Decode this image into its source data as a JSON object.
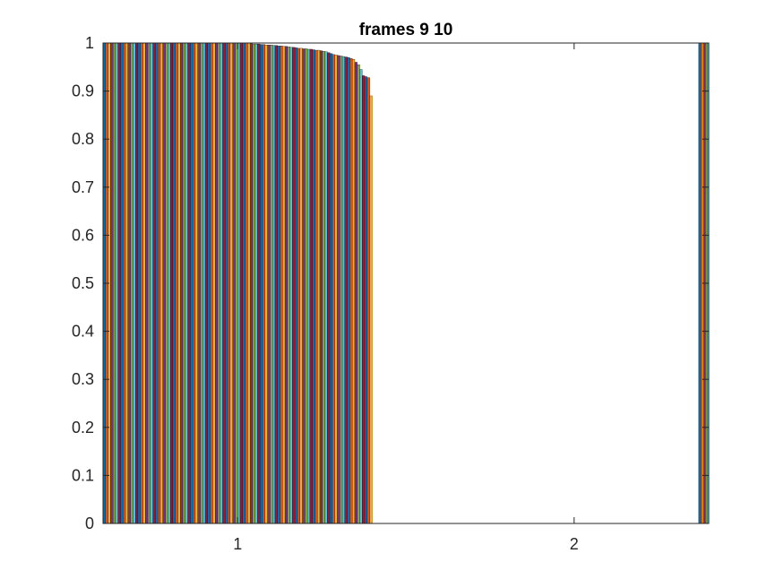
{
  "chart_data": {
    "type": "bar",
    "title": "frames 9 10",
    "xlabel": "",
    "ylabel": "",
    "xlim": [
      0.6,
      2.4
    ],
    "ylim": [
      0,
      1
    ],
    "x_ticks": [
      1,
      2
    ],
    "x_tick_labels": [
      "1",
      "2"
    ],
    "y_ticks": [
      0,
      0.1,
      0.2,
      0.3,
      0.4,
      0.5,
      0.6,
      0.7,
      0.8,
      0.9,
      1
    ],
    "y_tick_labels": [
      "0",
      "0.1",
      "0.2",
      "0.3",
      "0.4",
      "0.5",
      "0.6",
      "0.7",
      "0.8",
      "0.9",
      "1"
    ],
    "grid": false,
    "legend": "none",
    "colors": [
      "#0072BD",
      "#D95319",
      "#EDB120",
      "#7E2F8E",
      "#77AC30",
      "#4DBEEE",
      "#A2142F"
    ],
    "groups": [
      {
        "category": 1,
        "x_range": [
          0.6,
          1.4
        ],
        "values": [
          1,
          1,
          1,
          1,
          1,
          1,
          1,
          1,
          1,
          1,
          1,
          1,
          1,
          1,
          1,
          1,
          1,
          1,
          1,
          1,
          1,
          1,
          1,
          1,
          1,
          1,
          1,
          1,
          1,
          1,
          1,
          1,
          1,
          1,
          1,
          1,
          1,
          1,
          1,
          1,
          1,
          1,
          1,
          1,
          1,
          1,
          1,
          1,
          1,
          1,
          1,
          1,
          1,
          1,
          1,
          1,
          1,
          1,
          1,
          1,
          0.998,
          0.998,
          0.998,
          0.997,
          0.997,
          0.996,
          0.996,
          0.996,
          0.995,
          0.995,
          0.994,
          0.994,
          0.993,
          0.993,
          0.992,
          0.991,
          0.991,
          0.99,
          0.989,
          0.989,
          0.988,
          0.988,
          0.987,
          0.987,
          0.986,
          0.985,
          0.985,
          0.984,
          0.983,
          0.982,
          0.98,
          0.978,
          0.976,
          0.975,
          0.974,
          0.973,
          0.972,
          0.971,
          0.97,
          0.968,
          0.966,
          0.96,
          0.955,
          0.945,
          0.932,
          0.93,
          0.928,
          0.89
        ]
      },
      {
        "category": 2,
        "x_range": [
          2.37,
          2.4
        ],
        "values": [
          1,
          1,
          1,
          1,
          1,
          1
        ]
      }
    ]
  }
}
